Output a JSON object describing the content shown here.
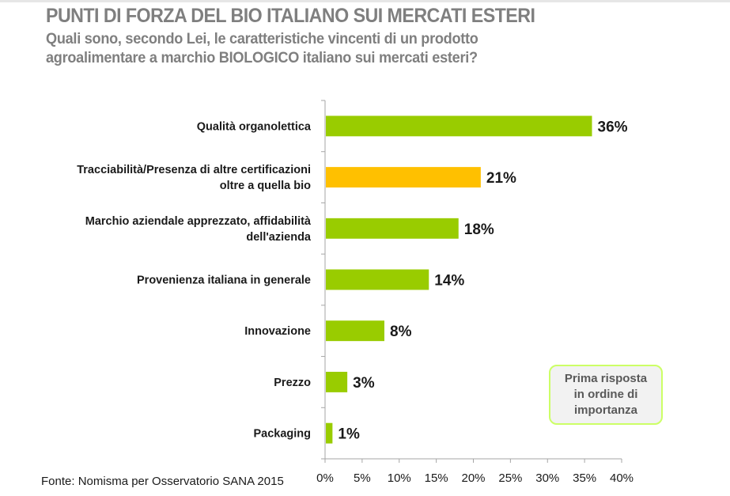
{
  "header": {
    "title": "PUNTI DI FORZA DEL BIO ITALIANO SUI MERCATI ESTERI",
    "subtitle_line1": "Quali sono, secondo Lei, le caratteristiche vincenti di un prodotto",
    "subtitle_line2": "agroalimentare a marchio BIOLOGICO italiano sui mercati esteri?"
  },
  "source": "Fonte: Nomisma per Osservatorio SANA 2015",
  "note": {
    "line1": "Prima risposta",
    "line2": "in ordine di",
    "line3": "importanza"
  },
  "colors": {
    "default_bar": "#99cc00",
    "highlight_bar": "#ffc000",
    "axis": "#a6a6a6",
    "note_border": "#ccff66"
  },
  "chart_data": {
    "type": "bar",
    "orientation": "horizontal",
    "title": "PUNTI DI FORZA DEL BIO ITALIANO SUI MERCATI ESTERI",
    "xlabel": "",
    "ylabel": "",
    "xlim": [
      0,
      40
    ],
    "x_ticks": [
      "0%",
      "5%",
      "10%",
      "15%",
      "20%",
      "25%",
      "30%",
      "35%",
      "40%"
    ],
    "x_tick_values": [
      0,
      5,
      10,
      15,
      20,
      25,
      30,
      35,
      40
    ],
    "grid": false,
    "legend": "none",
    "categories": [
      [
        "Qualità organolettica"
      ],
      [
        "Tracciabilità/Presenza di altre certificazioni",
        "oltre a quella bio"
      ],
      [
        "Marchio aziendale apprezzato, affidabilità",
        "dell'azienda"
      ],
      [
        "Provenienza italiana in generale"
      ],
      [
        "Innovazione"
      ],
      [
        "Prezzo"
      ],
      [
        "Packaging"
      ]
    ],
    "values": [
      36,
      21,
      18,
      14,
      8,
      3,
      1
    ],
    "value_labels": [
      "36%",
      "21%",
      "18%",
      "14%",
      "8%",
      "3%",
      "1%"
    ],
    "highlight_index": 1,
    "annotation": "Prima risposta in ordine di importanza"
  }
}
